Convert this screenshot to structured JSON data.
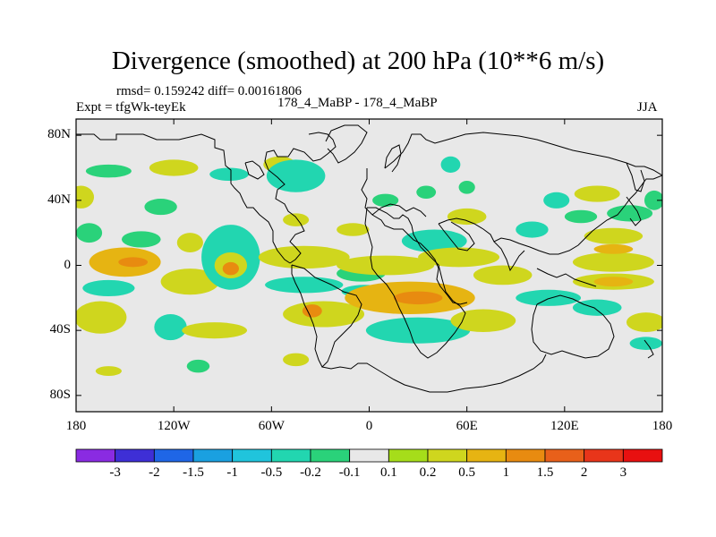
{
  "chart_data": {
    "type": "heatmap",
    "title": "Divergence (smoothed) at 200 hPa (10**6 m/s)",
    "stats": "rmsd= 0.159242 diff= 0.00161806",
    "experiment": "Expt = tfgWk-teyEk",
    "comparison": "178_4_MaBP - 178_4_MaBP",
    "season": "JJA",
    "x_range": [
      -180,
      180
    ],
    "y_range": [
      -90,
      90
    ],
    "x_ticks": [
      {
        "value": -180,
        "label": "180"
      },
      {
        "value": -120,
        "label": "120W"
      },
      {
        "value": -60,
        "label": "60W"
      },
      {
        "value": 0,
        "label": "0"
      },
      {
        "value": 60,
        "label": "60E"
      },
      {
        "value": 120,
        "label": "120E"
      },
      {
        "value": 180,
        "label": "180"
      }
    ],
    "y_ticks": [
      {
        "value": 80,
        "label": "80N"
      },
      {
        "value": 40,
        "label": "40N"
      },
      {
        "value": 0,
        "label": "0"
      },
      {
        "value": -40,
        "label": "40S"
      },
      {
        "value": -80,
        "label": "80S"
      }
    ],
    "colorbar": {
      "labels": [
        "-3",
        "-2",
        "-1.5",
        "-1",
        "-0.5",
        "-0.2",
        "-0.1",
        "0.1",
        "0.2",
        "0.5",
        "1",
        "1.5",
        "2",
        "3"
      ],
      "colors": [
        "#8a2be2",
        "#3e2fd6",
        "#1f66e6",
        "#1aa0e0",
        "#20c4dc",
        "#22d6b0",
        "#2ad27a",
        "#e8e8e8",
        "#a6dd1a",
        "#cfd61e",
        "#e6b412",
        "#e88b10",
        "#e8601a",
        "#e8351a",
        "#e81010"
      ]
    },
    "contour_levels": [
      {
        "lon": -177,
        "lat": 42,
        "rx": 8,
        "ry": 7,
        "level": "0.2"
      },
      {
        "lon": -160,
        "lat": 58,
        "rx": 14,
        "ry": 4,
        "level": "-0.1"
      },
      {
        "lon": -172,
        "lat": 20,
        "rx": 8,
        "ry": 6,
        "level": "-0.1"
      },
      {
        "lon": -150,
        "lat": 2,
        "rx": 22,
        "ry": 9,
        "level": "0.5"
      },
      {
        "lon": -145,
        "lat": 2,
        "rx": 9,
        "ry": 3,
        "level": "1"
      },
      {
        "lon": -160,
        "lat": -14,
        "rx": 16,
        "ry": 5,
        "level": "-0.2"
      },
      {
        "lon": -140,
        "lat": 16,
        "rx": 12,
        "ry": 5,
        "level": "-0.1"
      },
      {
        "lon": -165,
        "lat": -32,
        "rx": 16,
        "ry": 10,
        "level": "0.2"
      },
      {
        "lon": -120,
        "lat": 60,
        "rx": 15,
        "ry": 5,
        "level": "0.2"
      },
      {
        "lon": -128,
        "lat": 36,
        "rx": 10,
        "ry": 5,
        "level": "-0.1"
      },
      {
        "lon": -110,
        "lat": 14,
        "rx": 8,
        "ry": 6,
        "level": "0.2"
      },
      {
        "lon": -110,
        "lat": -10,
        "rx": 18,
        "ry": 8,
        "level": "0.2"
      },
      {
        "lon": -85,
        "lat": 5,
        "rx": 18,
        "ry": 20,
        "level": "-0.2"
      },
      {
        "lon": -85,
        "lat": 0,
        "rx": 10,
        "ry": 8,
        "level": "0.2"
      },
      {
        "lon": -85,
        "lat": -2,
        "rx": 5,
        "ry": 4,
        "level": "1"
      },
      {
        "lon": -122,
        "lat": -38,
        "rx": 10,
        "ry": 8,
        "level": "-0.2"
      },
      {
        "lon": -95,
        "lat": -40,
        "rx": 20,
        "ry": 5,
        "level": "0.2"
      },
      {
        "lon": -105,
        "lat": -62,
        "rx": 7,
        "ry": 4,
        "level": "-0.1"
      },
      {
        "lon": -86,
        "lat": 56,
        "rx": 12,
        "ry": 4,
        "level": "-0.2"
      },
      {
        "lon": -55,
        "lat": 62,
        "rx": 10,
        "ry": 5,
        "level": "0.2"
      },
      {
        "lon": -45,
        "lat": 55,
        "rx": 18,
        "ry": 10,
        "level": "-0.2"
      },
      {
        "lon": -45,
        "lat": 28,
        "rx": 8,
        "ry": 4,
        "level": "0.2"
      },
      {
        "lon": -40,
        "lat": 5,
        "rx": 28,
        "ry": 7,
        "level": "0.2"
      },
      {
        "lon": -40,
        "lat": -12,
        "rx": 24,
        "ry": 5,
        "level": "-0.2"
      },
      {
        "lon": -28,
        "lat": -30,
        "rx": 25,
        "ry": 8,
        "level": "0.2"
      },
      {
        "lon": -35,
        "lat": -28,
        "rx": 6,
        "ry": 4,
        "level": "1"
      },
      {
        "lon": -45,
        "lat": -58,
        "rx": 8,
        "ry": 4,
        "level": "0.2"
      },
      {
        "lon": -10,
        "lat": 22,
        "rx": 10,
        "ry": 4,
        "level": "0.2"
      },
      {
        "lon": -5,
        "lat": -5,
        "rx": 15,
        "ry": 5,
        "level": "-0.1"
      },
      {
        "lon": -3,
        "lat": -16,
        "rx": 14,
        "ry": 4,
        "level": "-0.2"
      },
      {
        "lon": 25,
        "lat": -20,
        "rx": 40,
        "ry": 10,
        "level": "0.5"
      },
      {
        "lon": 30,
        "lat": -20,
        "rx": 15,
        "ry": 4,
        "level": "1"
      },
      {
        "lon": 10,
        "lat": 0,
        "rx": 30,
        "ry": 6,
        "level": "0.2"
      },
      {
        "lon": 40,
        "lat": 15,
        "rx": 20,
        "ry": 7,
        "level": "-0.2"
      },
      {
        "lon": 55,
        "lat": 5,
        "rx": 25,
        "ry": 6,
        "level": "0.2"
      },
      {
        "lon": 10,
        "lat": 40,
        "rx": 8,
        "ry": 4,
        "level": "-0.1"
      },
      {
        "lon": 35,
        "lat": 45,
        "rx": 6,
        "ry": 4,
        "level": "-0.1"
      },
      {
        "lon": 50,
        "lat": 62,
        "rx": 6,
        "ry": 5,
        "level": "-0.2"
      },
      {
        "lon": 60,
        "lat": 30,
        "rx": 12,
        "ry": 5,
        "level": "0.2"
      },
      {
        "lon": 30,
        "lat": -40,
        "rx": 32,
        "ry": 8,
        "level": "-0.2"
      },
      {
        "lon": 70,
        "lat": -34,
        "rx": 20,
        "ry": 7,
        "level": "0.2"
      },
      {
        "lon": 82,
        "lat": -6,
        "rx": 18,
        "ry": 6,
        "level": "0.2"
      },
      {
        "lon": 110,
        "lat": -20,
        "rx": 20,
        "ry": 5,
        "level": "-0.2"
      },
      {
        "lon": 60,
        "lat": 48,
        "rx": 5,
        "ry": 4,
        "level": "-0.1"
      },
      {
        "lon": 100,
        "lat": 22,
        "rx": 10,
        "ry": 5,
        "level": "-0.2"
      },
      {
        "lon": 115,
        "lat": 40,
        "rx": 8,
        "ry": 5,
        "level": "-0.2"
      },
      {
        "lon": 140,
        "lat": 44,
        "rx": 14,
        "ry": 5,
        "level": "0.2"
      },
      {
        "lon": 130,
        "lat": 30,
        "rx": 10,
        "ry": 4,
        "level": "-0.1"
      },
      {
        "lon": 160,
        "lat": 32,
        "rx": 14,
        "ry": 5,
        "level": "-0.1"
      },
      {
        "lon": 150,
        "lat": 18,
        "rx": 18,
        "ry": 5,
        "level": "0.2"
      },
      {
        "lon": 150,
        "lat": 2,
        "rx": 25,
        "ry": 6,
        "level": "0.2"
      },
      {
        "lon": 150,
        "lat": 10,
        "rx": 12,
        "ry": 3,
        "level": "0.5"
      },
      {
        "lon": 150,
        "lat": -10,
        "rx": 25,
        "ry": 5,
        "level": "0.2"
      },
      {
        "lon": 150,
        "lat": -10,
        "rx": 12,
        "ry": 3,
        "level": "0.5"
      },
      {
        "lon": 140,
        "lat": -26,
        "rx": 15,
        "ry": 5,
        "level": "-0.2"
      },
      {
        "lon": 170,
        "lat": -35,
        "rx": 12,
        "ry": 6,
        "level": "0.2"
      },
      {
        "lon": 175,
        "lat": 40,
        "rx": 6,
        "ry": 6,
        "level": "-0.1"
      },
      {
        "lon": 170,
        "lat": -48,
        "rx": 10,
        "ry": 4,
        "level": "-0.2"
      },
      {
        "lon": -160,
        "lat": -65,
        "rx": 8,
        "ry": 3,
        "level": "0.2"
      }
    ]
  }
}
